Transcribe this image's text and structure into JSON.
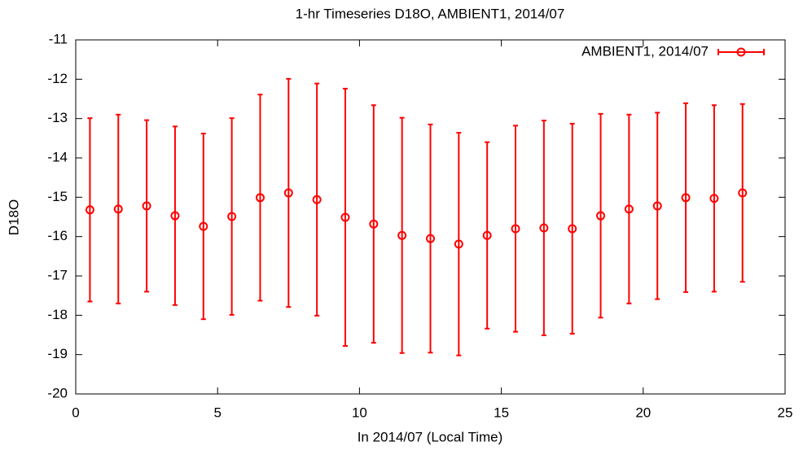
{
  "chart_data": {
    "type": "errorbar",
    "title": "1-hr Timeseries D18O, AMBIENT1, 2014/07",
    "x_label": "In 2014/07 (Local Time)",
    "y_label": "D18O",
    "legend_position": "top-right",
    "xlim": [
      0,
      25
    ],
    "xticks": [
      0,
      5,
      10,
      15,
      20,
      25
    ],
    "ylim": [
      -20,
      -11
    ],
    "yticks": [
      -20,
      -19,
      -18,
      -17,
      -16,
      -15,
      -14,
      -13,
      -12,
      -11
    ],
    "series": [
      {
        "name": "AMBIENT1, 2014/07",
        "color": "#ff0000",
        "x": [
          0.5,
          1.5,
          2.5,
          3.5,
          4.5,
          5.5,
          6.5,
          7.5,
          8.5,
          9.5,
          10.5,
          11.5,
          12.5,
          13.5,
          14.5,
          15.5,
          16.5,
          17.5,
          18.5,
          19.5,
          20.5,
          21.5,
          22.5,
          23.5
        ],
        "values": [
          -15.32,
          -15.3,
          -15.22,
          -15.47,
          -15.74,
          -15.49,
          -15.01,
          -14.89,
          -15.06,
          -15.51,
          -15.68,
          -15.97,
          -16.05,
          -16.19,
          -15.97,
          -15.8,
          -15.78,
          -15.8,
          -15.47,
          -15.3,
          -15.22,
          -15.01,
          -15.03,
          -14.89
        ],
        "errors": [
          2.33,
          2.4,
          2.18,
          2.27,
          2.36,
          2.5,
          2.62,
          2.9,
          2.95,
          3.27,
          3.02,
          2.99,
          2.9,
          2.83,
          2.37,
          2.62,
          2.73,
          2.67,
          2.59,
          2.4,
          2.37,
          2.4,
          2.37,
          2.26
        ]
      }
    ]
  }
}
